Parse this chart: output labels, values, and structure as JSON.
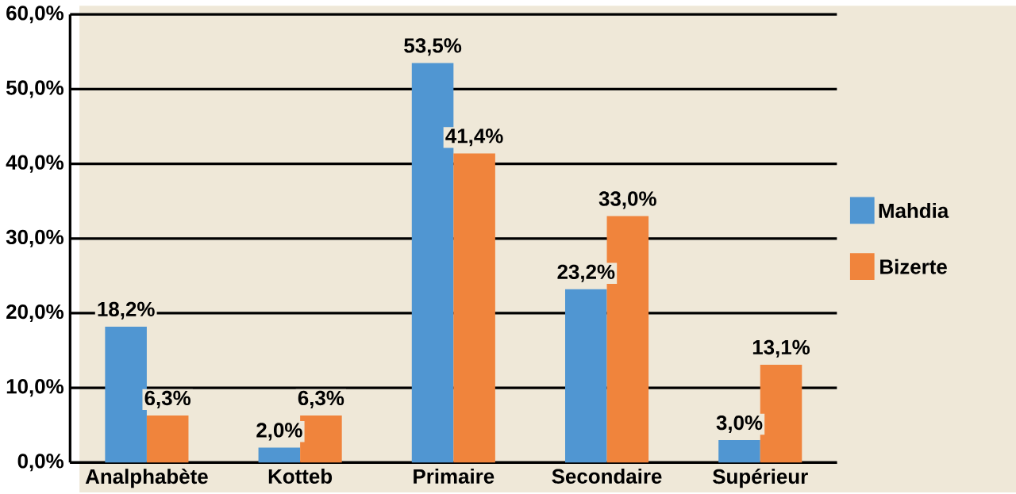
{
  "chart_data": {
    "type": "bar",
    "categories": [
      "Analphabète",
      "Kotteb",
      "Primaire",
      "Secondaire",
      "Supérieur"
    ],
    "series": [
      {
        "name": "Mahdia",
        "color": "#5096d2",
        "values": [
          18.2,
          2.0,
          53.5,
          23.2,
          3.0
        ],
        "value_labels": [
          "18,2%",
          "2,0%",
          "53,5%",
          "23,2%",
          "3,0%"
        ]
      },
      {
        "name": "Bizerte",
        "color": "#f0843c",
        "values": [
          6.3,
          6.3,
          41.4,
          33.0,
          13.1
        ],
        "value_labels": [
          "6,3%",
          "6,3%",
          "41,4%",
          "33,0%",
          "13,1%"
        ]
      }
    ],
    "ylim": [
      0,
      60
    ],
    "yticks": [
      {
        "value": 0,
        "label": "0,0%"
      },
      {
        "value": 10,
        "label": "10,0%"
      },
      {
        "value": 20,
        "label": "20,0%"
      },
      {
        "value": 30,
        "label": "30,0%"
      },
      {
        "value": 40,
        "label": "40,0%"
      },
      {
        "value": 50,
        "label": "50,0%"
      },
      {
        "value": 60,
        "label": "60,0%"
      }
    ],
    "grid": "y",
    "legend": "right"
  }
}
